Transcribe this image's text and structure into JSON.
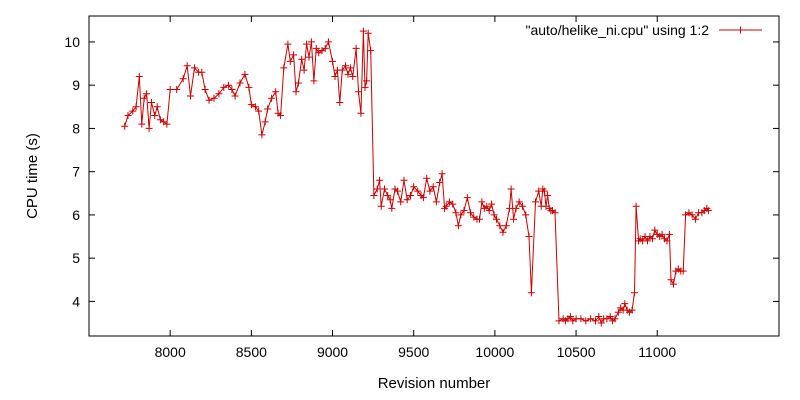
{
  "chart_data": {
    "type": "line",
    "title": "",
    "xlabel": "Revision number",
    "ylabel": "CPU time (s)",
    "xlim": [
      7500,
      11750
    ],
    "ylim": [
      3.2,
      10.6
    ],
    "xticks": [
      8000,
      8500,
      9000,
      9500,
      10000,
      10500,
      11000
    ],
    "yticks": [
      4,
      5,
      6,
      7,
      8,
      9,
      10
    ],
    "grid": false,
    "legend_position": "top-right",
    "colors": {
      "series": "#cc0000",
      "axis": "#000000"
    },
    "series": [
      {
        "name": "\"auto/helike_ni.cpu\" using 1:2",
        "marker": "plus",
        "points": [
          [
            7720,
            8.05
          ],
          [
            7740,
            8.3
          ],
          [
            7770,
            8.4
          ],
          [
            7790,
            8.5
          ],
          [
            7810,
            9.2
          ],
          [
            7825,
            8.1
          ],
          [
            7840,
            8.7
          ],
          [
            7855,
            8.8
          ],
          [
            7870,
            8.0
          ],
          [
            7885,
            8.6
          ],
          [
            7905,
            8.3
          ],
          [
            7920,
            8.5
          ],
          [
            7940,
            8.2
          ],
          [
            7960,
            8.15
          ],
          [
            7980,
            8.1
          ],
          [
            8000,
            8.9
          ],
          [
            8040,
            8.9
          ],
          [
            8080,
            9.15
          ],
          [
            8105,
            9.45
          ],
          [
            8125,
            8.75
          ],
          [
            8150,
            9.4
          ],
          [
            8175,
            9.3
          ],
          [
            8195,
            9.3
          ],
          [
            8215,
            8.9
          ],
          [
            8240,
            8.65
          ],
          [
            8270,
            8.7
          ],
          [
            8300,
            8.8
          ],
          [
            8330,
            8.95
          ],
          [
            8360,
            9.0
          ],
          [
            8380,
            8.9
          ],
          [
            8400,
            8.75
          ],
          [
            8430,
            9.05
          ],
          [
            8460,
            9.25
          ],
          [
            8485,
            8.95
          ],
          [
            8500,
            8.55
          ],
          [
            8525,
            8.5
          ],
          [
            8545,
            8.4
          ],
          [
            8565,
            7.85
          ],
          [
            8585,
            8.15
          ],
          [
            8600,
            8.45
          ],
          [
            8625,
            8.7
          ],
          [
            8650,
            8.85
          ],
          [
            8665,
            8.35
          ],
          [
            8680,
            8.3
          ],
          [
            8700,
            9.4
          ],
          [
            8725,
            9.95
          ],
          [
            8740,
            9.55
          ],
          [
            8760,
            9.7
          ],
          [
            8775,
            8.85
          ],
          [
            8790,
            9.05
          ],
          [
            8810,
            9.6
          ],
          [
            8825,
            9.35
          ],
          [
            8840,
            9.95
          ],
          [
            8855,
            9.65
          ],
          [
            8870,
            10.0
          ],
          [
            8885,
            9.1
          ],
          [
            8900,
            9.85
          ],
          [
            8915,
            9.75
          ],
          [
            8935,
            9.8
          ],
          [
            8955,
            9.85
          ],
          [
            8975,
            10.0
          ],
          [
            9000,
            9.55
          ],
          [
            9015,
            9.2
          ],
          [
            9030,
            9.35
          ],
          [
            9045,
            8.6
          ],
          [
            9060,
            9.35
          ],
          [
            9080,
            9.45
          ],
          [
            9095,
            9.25
          ],
          [
            9110,
            9.4
          ],
          [
            9125,
            9.2
          ],
          [
            9145,
            9.85
          ],
          [
            9160,
            8.85
          ],
          [
            9175,
            8.35
          ],
          [
            9190,
            10.25
          ],
          [
            9200,
            8.95
          ],
          [
            9210,
            9.1
          ],
          [
            9220,
            10.2
          ],
          [
            9235,
            9.8
          ],
          [
            9255,
            6.45
          ],
          [
            9275,
            6.6
          ],
          [
            9290,
            6.8
          ],
          [
            9300,
            6.2
          ],
          [
            9320,
            6.6
          ],
          [
            9340,
            6.45
          ],
          [
            9355,
            6.35
          ],
          [
            9365,
            6.15
          ],
          [
            9385,
            6.6
          ],
          [
            9400,
            6.55
          ],
          [
            9420,
            6.3
          ],
          [
            9440,
            6.8
          ],
          [
            9460,
            6.35
          ],
          [
            9480,
            6.45
          ],
          [
            9500,
            6.65
          ],
          [
            9525,
            6.55
          ],
          [
            9545,
            6.45
          ],
          [
            9560,
            6.4
          ],
          [
            9580,
            6.85
          ],
          [
            9600,
            6.55
          ],
          [
            9620,
            6.65
          ],
          [
            9640,
            6.3
          ],
          [
            9660,
            6.75
          ],
          [
            9675,
            6.95
          ],
          [
            9690,
            6.15
          ],
          [
            9700,
            6.2
          ],
          [
            9720,
            6.3
          ],
          [
            9740,
            6.25
          ],
          [
            9760,
            6.05
          ],
          [
            9775,
            5.75
          ],
          [
            9790,
            6.0
          ],
          [
            9810,
            6.1
          ],
          [
            9830,
            6.4
          ],
          [
            9850,
            6.05
          ],
          [
            9870,
            5.95
          ],
          [
            9890,
            5.9
          ],
          [
            9905,
            5.9
          ],
          [
            9920,
            6.3
          ],
          [
            9935,
            6.15
          ],
          [
            9950,
            6.2
          ],
          [
            9965,
            6.1
          ],
          [
            9980,
            6.25
          ],
          [
            9995,
            6.0
          ],
          [
            10010,
            5.9
          ],
          [
            10030,
            5.75
          ],
          [
            10050,
            5.6
          ],
          [
            10070,
            5.75
          ],
          [
            10090,
            6.15
          ],
          [
            10100,
            6.6
          ],
          [
            10115,
            5.9
          ],
          [
            10130,
            6.15
          ],
          [
            10150,
            6.3
          ],
          [
            10170,
            6.2
          ],
          [
            10190,
            6.0
          ],
          [
            10210,
            5.5
          ],
          [
            10225,
            4.2
          ],
          [
            10250,
            6.3
          ],
          [
            10270,
            6.55
          ],
          [
            10285,
            6.2
          ],
          [
            10295,
            6.6
          ],
          [
            10305,
            6.55
          ],
          [
            10315,
            6.2
          ],
          [
            10325,
            6.45
          ],
          [
            10335,
            6.15
          ],
          [
            10345,
            6.1
          ],
          [
            10355,
            6.1
          ],
          [
            10370,
            6.05
          ],
          [
            10395,
            3.55
          ],
          [
            10420,
            3.6
          ],
          [
            10435,
            3.55
          ],
          [
            10450,
            3.6
          ],
          [
            10465,
            3.65
          ],
          [
            10480,
            3.55
          ],
          [
            10500,
            3.6
          ],
          [
            10530,
            3.6
          ],
          [
            10560,
            3.55
          ],
          [
            10590,
            3.6
          ],
          [
            10620,
            3.55
          ],
          [
            10640,
            3.65
          ],
          [
            10655,
            3.5
          ],
          [
            10670,
            3.6
          ],
          [
            10690,
            3.6
          ],
          [
            10710,
            3.65
          ],
          [
            10725,
            3.55
          ],
          [
            10740,
            3.6
          ],
          [
            10760,
            3.75
          ],
          [
            10775,
            3.85
          ],
          [
            10790,
            3.8
          ],
          [
            10800,
            3.95
          ],
          [
            10815,
            3.8
          ],
          [
            10830,
            3.75
          ],
          [
            10845,
            3.8
          ],
          [
            10860,
            4.2
          ],
          [
            10870,
            6.2
          ],
          [
            10885,
            5.4
          ],
          [
            10895,
            5.45
          ],
          [
            10910,
            5.4
          ],
          [
            10925,
            5.5
          ],
          [
            10940,
            5.4
          ],
          [
            10955,
            5.5
          ],
          [
            10970,
            5.45
          ],
          [
            10985,
            5.65
          ],
          [
            11000,
            5.55
          ],
          [
            11015,
            5.5
          ],
          [
            11030,
            5.55
          ],
          [
            11045,
            5.45
          ],
          [
            11060,
            5.4
          ],
          [
            11075,
            5.55
          ],
          [
            11085,
            4.5
          ],
          [
            11100,
            4.4
          ],
          [
            11115,
            4.7
          ],
          [
            11130,
            4.75
          ],
          [
            11145,
            4.7
          ],
          [
            11160,
            4.7
          ],
          [
            11175,
            6.0
          ],
          [
            11195,
            6.05
          ],
          [
            11215,
            6.0
          ],
          [
            11235,
            5.9
          ],
          [
            11255,
            6.05
          ],
          [
            11275,
            6.05
          ],
          [
            11290,
            6.1
          ],
          [
            11305,
            6.15
          ],
          [
            11315,
            6.1
          ]
        ]
      }
    ]
  }
}
